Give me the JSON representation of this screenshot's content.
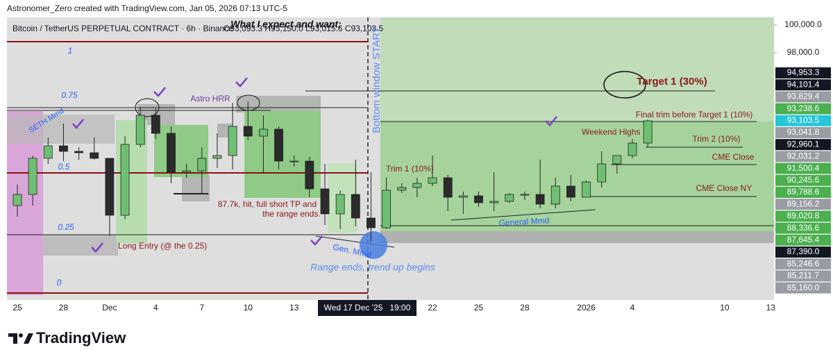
{
  "header": "Astronomer_Zero created with TradingView.com, Jan 05, 2026 07:13 UTC-5",
  "footer": "TradingView",
  "chart_data": {
    "type": "candlestick",
    "title": "Bitcoin / TetherUS PERPETUAL CONTRACT · 6h · Binance",
    "ohlc_legend": "O93,093.3 H93,150.0 L93,015.6 C93,103.5",
    "categories": [
      "2025-11-25",
      "2025-11-26",
      "2025-11-27",
      "2025-11-28",
      "2025-11-29",
      "2025-11-30",
      "2025-12-01",
      "2025-12-02",
      "2025-12-03",
      "2025-12-04",
      "2025-12-05",
      "2025-12-06",
      "2025-12-07",
      "2025-12-08",
      "2025-12-09",
      "2025-12-10",
      "2025-12-11",
      "2025-12-12",
      "2025-12-13",
      "2025-12-14",
      "2025-12-15",
      "2025-12-16",
      "2025-12-17",
      "2025-12-18",
      "2025-12-19",
      "2025-12-20",
      "2025-12-21",
      "2025-12-22",
      "2025-12-23",
      "2025-12-24",
      "2025-12-25",
      "2025-12-26",
      "2025-12-27",
      "2025-12-28",
      "2025-12-29",
      "2025-12-30",
      "2025-12-31",
      "2026-01-01",
      "2026-01-02",
      "2026-01-03",
      "2026-01-04",
      "2026-01-05"
    ],
    "open": [
      87000,
      87800,
      90400,
      91300,
      90900,
      90800,
      90400,
      86300,
      91400,
      93500,
      92200,
      89400,
      89500,
      90400,
      90600,
      92700,
      92000,
      92500,
      90200,
      90200,
      88200,
      86400,
      87800,
      86100,
      85400,
      88100,
      88300,
      88600,
      89000,
      87600,
      87700,
      87200,
      87300,
      87800,
      87800,
      87100,
      88400,
      87600,
      88700,
      90000,
      90600,
      91500
    ],
    "high": [
      88500,
      90600,
      91900,
      92900,
      91200,
      91900,
      90400,
      92000,
      94100,
      94000,
      92700,
      90000,
      91200,
      92200,
      94400,
      94500,
      93500,
      92700,
      90600,
      90500,
      90000,
      88100,
      90300,
      89400,
      89000,
      88600,
      89000,
      90600,
      89200,
      88000,
      88000,
      89400,
      87900,
      88000,
      90300,
      89000,
      89200,
      88800,
      90900,
      90600,
      91800,
      93200
    ],
    "low": [
      86200,
      87000,
      90000,
      90200,
      90300,
      90300,
      84800,
      86000,
      91200,
      91800,
      88600,
      89000,
      87900,
      89700,
      89600,
      91700,
      89300,
      89600,
      89800,
      87600,
      85600,
      85300,
      85500,
      84400,
      85300,
      87900,
      87600,
      88400,
      86600,
      86400,
      86900,
      86600,
      87200,
      87400,
      86800,
      86800,
      87300,
      87600,
      88300,
      89300,
      90400,
      91200
    ],
    "close": [
      87800,
      90400,
      91300,
      90900,
      90800,
      90400,
      86300,
      91400,
      93500,
      92200,
      89400,
      89500,
      90400,
      90600,
      92700,
      92000,
      92500,
      90200,
      90200,
      88200,
      86400,
      87800,
      86100,
      85400,
      88100,
      88300,
      88600,
      89000,
      87600,
      87700,
      87200,
      87300,
      87800,
      87800,
      87100,
      88400,
      87600,
      88700,
      90000,
      90600,
      91500,
      93100
    ],
    "up_color": "#6fbf73",
    "down_color": "#2b2b2b",
    "ylim": [
      80200,
      100550
    ],
    "yticks": [
      {
        "value": 100000,
        "label": "100,000.0"
      },
      {
        "value": 98000,
        "label": "98,000.0"
      }
    ],
    "xticks": [
      {
        "value": "2025-11-25",
        "label": "25"
      },
      {
        "value": "2025-11-28",
        "label": "28"
      },
      {
        "value": "2025-12-01",
        "label": "Dec"
      },
      {
        "value": "2025-12-04",
        "label": "4"
      },
      {
        "value": "2025-12-07",
        "label": "7"
      },
      {
        "value": "2025-12-10",
        "label": "10"
      },
      {
        "value": "2025-12-13",
        "label": "13"
      },
      {
        "value": "2025-12-22",
        "label": "22"
      },
      {
        "value": "2025-12-25",
        "label": "25"
      },
      {
        "value": "2025-12-28",
        "label": "28"
      },
      {
        "value": "2026-01-01",
        "label": "2026"
      },
      {
        "value": "2026-01-04",
        "label": "4"
      },
      {
        "value": "2026-01-10",
        "label": "10"
      },
      {
        "value": "2026-01-13",
        "label": "13"
      }
    ],
    "crosshair_label": "Wed 17 Dec '25   19:00",
    "price_labels": [
      "94,953.3",
      "94,101.4",
      "93,829.4",
      "93,238.6",
      "93,103.5",
      "93,041.8",
      "92,960.1",
      "92,031.2",
      "91,500.4",
      "90,245.6",
      "89,788.6",
      "89,156.2",
      "89,020.8",
      "88,336.6",
      "87,645.4",
      "87,390.0",
      "85,246.6",
      "85,211.7",
      "85,160.0"
    ],
    "price_label_colors": [
      "#131722",
      "#131722",
      "#9a9ca3",
      "#4caf50",
      "#26c6da",
      "#9a9ca3",
      "#131722",
      "#9a9ca3",
      "#4caf50",
      "#4caf50",
      "#4caf50",
      "#9a9ca3",
      "#4caf50",
      "#4caf50",
      "#4caf50",
      "#131722",
      "#9a9ca3",
      "#9a9ca3",
      "#9a9ca3"
    ],
    "annotations": [
      "What I expect and want:",
      "1",
      "0.75",
      "0.5",
      "0.25",
      "0",
      "SETH Mmd",
      "Astro HRR",
      "87.7k, hit, full short TP and",
      "the range ends.",
      "Long Entry (@ the 0.25)",
      "Gen. Mmd",
      "Range ends, trend up begins",
      "Bottom window START",
      "Trim 1 (10%)",
      "Target 1 (30%)",
      "Final trim before Target 1 (10%)",
      "Weekend Highs",
      "Trim 2 (10%)",
      "CME Close",
      "CME Close NY",
      "General Mmd"
    ]
  }
}
